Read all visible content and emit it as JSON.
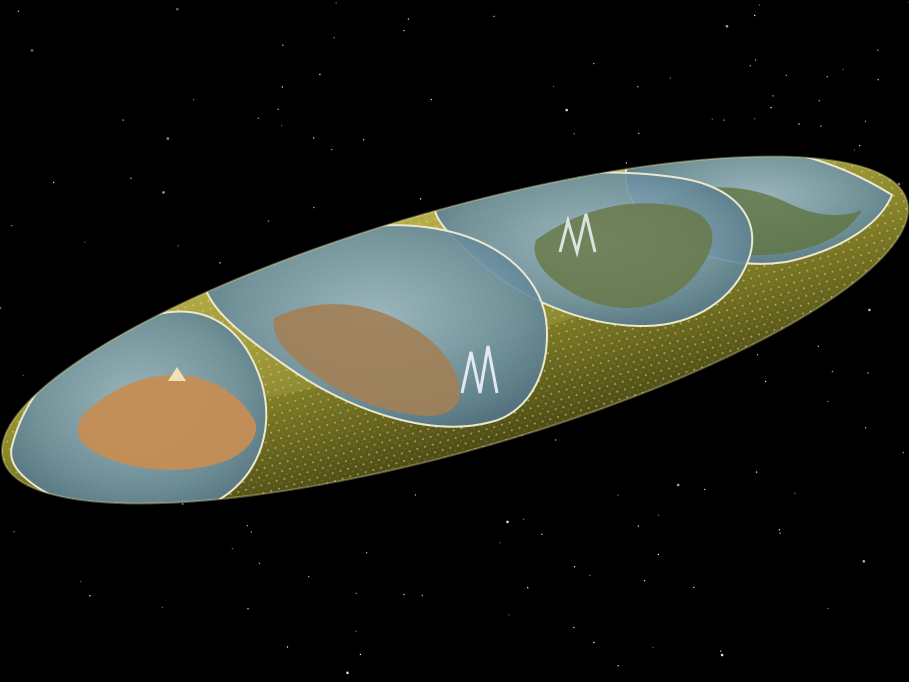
{
  "colors": {
    "space": "#000000",
    "hull": "#8a8a2a",
    "hull_dark": "#4f4f18",
    "hull_light": "#b9b14a",
    "panel_dots": "#d8cf72",
    "dome_glass": "#6f95a8",
    "dome_rim": "#e9e6c8",
    "terrain_warm": "#c08a55",
    "terrain_green": "#6f7a44",
    "snow": "#e6ecf2"
  }
}
